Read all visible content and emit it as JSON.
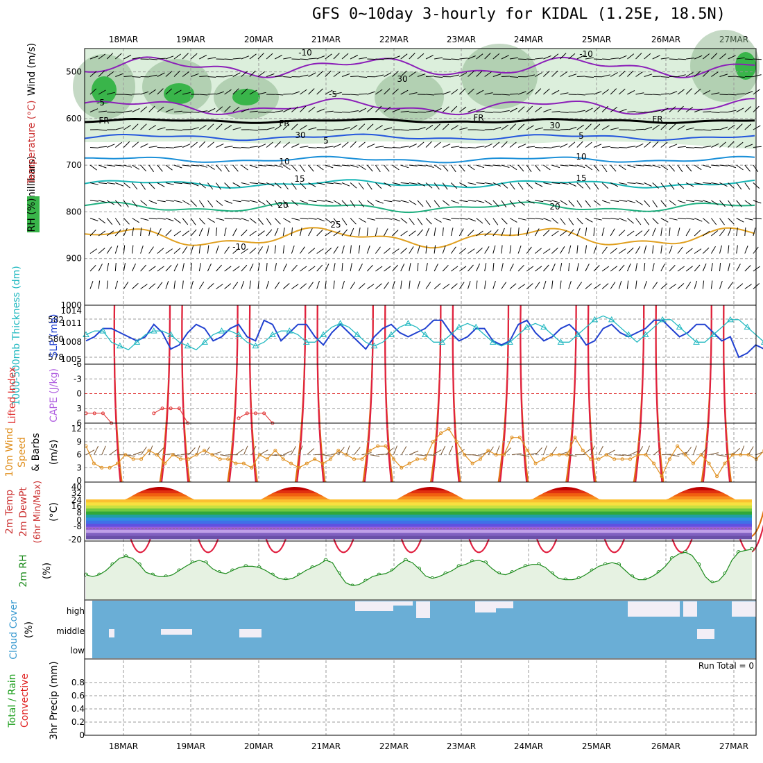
{
  "title": "GFS 0~10day 3-hourly for KIDAL (1.25E, 18.5N)",
  "dates": [
    "18MAR",
    "19MAR",
    "20MAR",
    "21MAR",
    "22MAR",
    "23MAR",
    "24MAR",
    "25MAR",
    "26MAR",
    "27MAR"
  ],
  "colors": {
    "rh_fill": "#d6ecd6",
    "rh_dark": "#7faa7f",
    "rh_green": "#39b54a",
    "t_minus10": "#8b1fb8",
    "t_plus5": "#2255dd",
    "t_10": "#1a8fd8",
    "t_15": "#15b5b5",
    "t_20": "#20b080",
    "t_25": "#e0a020",
    "t_30": "#e07010",
    "t_35": "#e02040",
    "slp": "#2040d0",
    "thick": "#20b8c0",
    "li": "#e03030",
    "wind": "#e09020",
    "rh2m": "#1a8a1a",
    "cloud": "#6aaed6",
    "cloud_white": "#f2eef6",
    "precip_total": "#20a020",
    "precip_conv": "#e02020"
  },
  "panels": {
    "upper": {
      "ylabel_wind": "Wind (m/s)",
      "ylabel_temp": "Temperature (°C)",
      "ylabel_rh": "RH (%)",
      "ylabel_unit": "(millibars)",
      "yticks": [
        "500",
        "600",
        "700",
        "800",
        "900",
        "1000"
      ],
      "contour_labels": [
        "-10",
        "-5",
        "-10",
        "-5",
        "FR",
        "FR",
        "FR",
        "FR",
        "5",
        "10",
        "15",
        "20",
        "5",
        "10",
        "15",
        "20",
        "25",
        "30",
        "30",
        "30",
        "-10"
      ]
    },
    "thickness": {
      "ylabel_left": "1000-500mb Thickness (dm)",
      "ylabel_right": "SLP (mb)",
      "yticks_left": [
        "582",
        "580",
        "578"
      ],
      "yticks_right": [
        "1014",
        "1011",
        "1008",
        "1005"
      ]
    },
    "lifted": {
      "ylabel_left": "Lifted Index",
      "ylabel_right": "CAPE (J/kg)",
      "yticks": [
        "-6",
        "-3",
        "0",
        "3",
        "6"
      ]
    },
    "wind10m": {
      "ylabel_left": "10m Wind",
      "ylabel_mid": "Speed",
      "ylabel_right": "& Barbs",
      "ylabel_unit": "(m/s)",
      "yticks": [
        "12",
        "9",
        "6",
        "3",
        "0"
      ]
    },
    "temp2m": {
      "ylabel_left": "2m Temp",
      "ylabel_mid": "2m DewPt",
      "ylabel_right": "(6hr Min/Max)",
      "ylabel_unit": "(°C)",
      "yticks": [
        "40",
        "32",
        "24",
        "16",
        "8",
        "0",
        "-8",
        "-20"
      ]
    },
    "rh2m": {
      "ylabel": "2m RH",
      "ylabel_unit": "(%)"
    },
    "cloud": {
      "ylabel": "Cloud Cover",
      "ylabel_unit": "(%)",
      "levels": [
        "high",
        "middle",
        "low"
      ]
    },
    "precip": {
      "ylabel_left": "Total / Rain",
      "ylabel_left2": "Convective",
      "ylabel_right": "3hr Precip (mm)",
      "yticks": [
        "0.8",
        "0.6",
        "0.4",
        "0.2",
        "0"
      ],
      "run_total": "Run Total = 0"
    }
  },
  "chart_data": [
    {
      "type": "line",
      "title": "",
      "series": [
        {
          "name": "SLP (mb)",
          "values": [
            1008,
            1009,
            1011,
            1011,
            1010,
            1009,
            1008,
            1009,
            1012,
            1010,
            1006,
            1007,
            1010,
            1012,
            1011,
            1008,
            1009,
            1011,
            1012,
            1009,
            1008,
            1013,
            1012,
            1008,
            1010,
            1012,
            1012,
            1009,
            1007,
            1010,
            1012,
            1010,
            1008,
            1006,
            1009,
            1011,
            1012,
            1010,
            1009,
            1010,
            1011,
            1013,
            1013,
            1010,
            1008,
            1009,
            1011,
            1011,
            1008,
            1007,
            1008,
            1012,
            1013,
            1010,
            1008,
            1009,
            1011,
            1012,
            1010,
            1007,
            1008,
            1011,
            1012,
            1010,
            1009,
            1010,
            1011,
            1013,
            1013,
            1011,
            1009,
            1010,
            1012,
            1012,
            1010,
            1008,
            1009,
            1004,
            1005,
            1007,
            1006,
            1008
          ]
        },
        {
          "name": "1000-500mb Thickness (dm)",
          "values": [
            580,
            580.5,
            580.5,
            579,
            578.5,
            578,
            579,
            580,
            580.5,
            580.5,
            580,
            579,
            578.5,
            578,
            579,
            580,
            580.5,
            580.5,
            580,
            579,
            578.5,
            579,
            580,
            580.5,
            580.5,
            580,
            579,
            579,
            580,
            581,
            581.5,
            581,
            580,
            579,
            578.5,
            579,
            580,
            581,
            581.5,
            581,
            580,
            579,
            579,
            580,
            581,
            581.5,
            581,
            580,
            579,
            578.5,
            579,
            580,
            581,
            581.5,
            581,
            580,
            579,
            579,
            580,
            581,
            582,
            582.5,
            582,
            581,
            580,
            579,
            580,
            581,
            582,
            582,
            581,
            580,
            579,
            579,
            580,
            581,
            582,
            582,
            581,
            580,
            579,
            578.5
          ]
        }
      ]
    },
    {
      "type": "line",
      "title": "",
      "series": [
        {
          "name": "Lifted Index",
          "values": [
            4,
            4,
            4,
            6,
            null,
            null,
            null,
            null,
            4,
            3,
            3,
            3,
            6,
            null,
            null,
            null,
            null,
            null,
            5,
            4,
            4,
            4,
            6,
            null,
            null,
            null,
            null,
            null,
            null,
            null,
            null,
            null,
            null,
            null,
            null,
            null,
            null,
            null,
            null,
            null,
            null,
            null,
            null,
            null,
            null,
            null,
            null,
            null,
            null,
            null,
            null,
            null,
            null,
            null,
            null,
            null,
            null,
            null,
            null,
            null,
            null,
            null,
            null,
            null,
            null,
            null,
            null,
            null,
            null,
            null,
            null,
            null,
            null,
            null,
            null,
            null,
            null,
            null,
            null,
            null,
            null,
            null
          ]
        }
      ]
    },
    {
      "type": "line",
      "title": "",
      "series": [
        {
          "name": "10m Wind Speed",
          "values": [
            8,
            4,
            3,
            3,
            4,
            6,
            5,
            5,
            7,
            6,
            4,
            6,
            5,
            5,
            6,
            7,
            6,
            5,
            5,
            4,
            4,
            3,
            6,
            5,
            7,
            5,
            4,
            3,
            4,
            5,
            4,
            5,
            7,
            6,
            5,
            5,
            7,
            8,
            8,
            5,
            3,
            4,
            5,
            5,
            9,
            11,
            12,
            9,
            6,
            4,
            5,
            7,
            6,
            6,
            10,
            10,
            7,
            4,
            5,
            6,
            6,
            6,
            10,
            7,
            5,
            5,
            6,
            5,
            5,
            5,
            6,
            6,
            4,
            1,
            5,
            8,
            6,
            4,
            6,
            4,
            1,
            4,
            6,
            6,
            6,
            5,
            7
          ]
        }
      ]
    },
    {
      "type": "line",
      "title": "",
      "series": [
        {
          "name": "2m RH",
          "values": [
            38,
            35,
            38,
            45,
            55,
            65,
            68,
            65,
            55,
            42,
            38,
            35,
            35,
            38,
            45,
            52,
            58,
            62,
            58,
            48,
            42,
            40,
            45,
            50,
            52,
            52,
            50,
            45,
            38,
            32,
            30,
            32,
            38,
            45,
            50,
            55,
            62,
            58,
            40,
            25,
            20,
            22,
            28,
            35,
            38,
            40,
            45,
            55,
            62,
            58,
            48,
            36,
            32,
            35,
            40,
            45,
            52,
            55,
            60,
            62,
            58,
            48,
            40,
            38,
            42,
            48,
            52,
            55,
            55,
            50,
            40,
            32,
            30,
            30,
            32,
            38,
            45,
            52,
            55,
            58,
            55,
            45,
            35,
            30,
            30,
            35,
            42,
            52,
            65,
            72,
            75,
            70,
            55,
            35,
            25,
            28,
            40,
            62,
            75,
            78,
            80
          ]
        }
      ]
    },
    {
      "type": "bar",
      "title": "",
      "series": [
        {
          "name": "3hr Precip Total",
          "values": [
            0,
            0,
            0,
            0,
            0,
            0,
            0,
            0,
            0,
            0
          ]
        },
        {
          "name": "3hr Precip Convective",
          "values": [
            0,
            0,
            0,
            0,
            0,
            0,
            0,
            0,
            0,
            0
          ]
        }
      ],
      "categories": [
        "18MAR",
        "19MAR",
        "20MAR",
        "21MAR",
        "22MAR",
        "23MAR",
        "24MAR",
        "25MAR",
        "26MAR",
        "27MAR"
      ],
      "ylim": [
        0,
        1
      ]
    }
  ]
}
